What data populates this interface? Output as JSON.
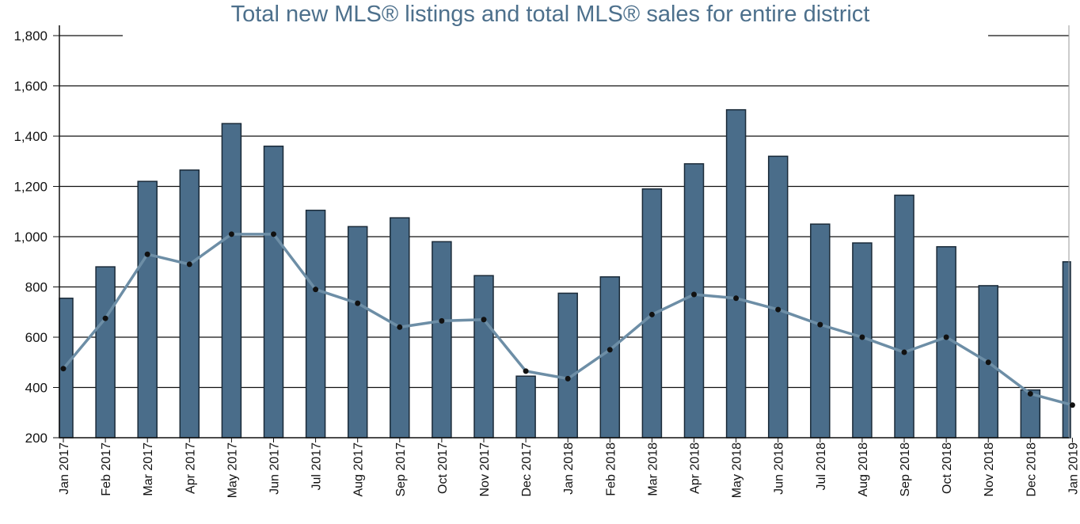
{
  "colors": {
    "bars": "#4a6d8a",
    "bar_stroke": "#1a2a38",
    "line": "#6d8ea6",
    "marker": "#111111",
    "title": "#4d708c",
    "grid": "#111111"
  },
  "chart_data": {
    "type": "bar",
    "title": "Total new MLS® listings and total MLS® sales for entire district",
    "xlabel": "",
    "ylabel": "",
    "ylim": [
      200,
      1800
    ],
    "yticks": [
      200,
      400,
      600,
      800,
      1000,
      1200,
      1400,
      1600,
      1800
    ],
    "ytick_labels": [
      "200",
      "400",
      "600",
      "800",
      "1,000",
      "1,200",
      "1,400",
      "1,600",
      "1,800"
    ],
    "grid": true,
    "legend": "none",
    "categories": [
      "Jan 2017",
      "Feb 2017",
      "Mar 2017",
      "Apr 2017",
      "May 2017",
      "Jun 2017",
      "Jul 2017",
      "Aug 2017",
      "Sep 2017",
      "Oct 2017",
      "Nov 2017",
      "Dec 2017",
      "Jan 2018",
      "Feb 2018",
      "Mar 2018",
      "Apr 2018",
      "May 2018",
      "Jun 2018",
      "Jul 2018",
      "Aug 2018",
      "Sep 2018",
      "Oct 2018",
      "Nov 2018",
      "Dec 2018",
      "Jan 2019"
    ],
    "series": [
      {
        "type": "bar",
        "values": [
          755,
          880,
          1220,
          1265,
          1450,
          1360,
          1105,
          1040,
          1075,
          980,
          845,
          445,
          775,
          840,
          1190,
          1290,
          1505,
          1320,
          1050,
          975,
          1165,
          960,
          805,
          390,
          900
        ]
      },
      {
        "type": "line",
        "values": [
          475,
          675,
          930,
          890,
          1010,
          1010,
          790,
          735,
          640,
          665,
          670,
          465,
          435,
          550,
          690,
          770,
          755,
          710,
          650,
          600,
          540,
          600,
          500,
          375,
          330
        ]
      }
    ]
  }
}
